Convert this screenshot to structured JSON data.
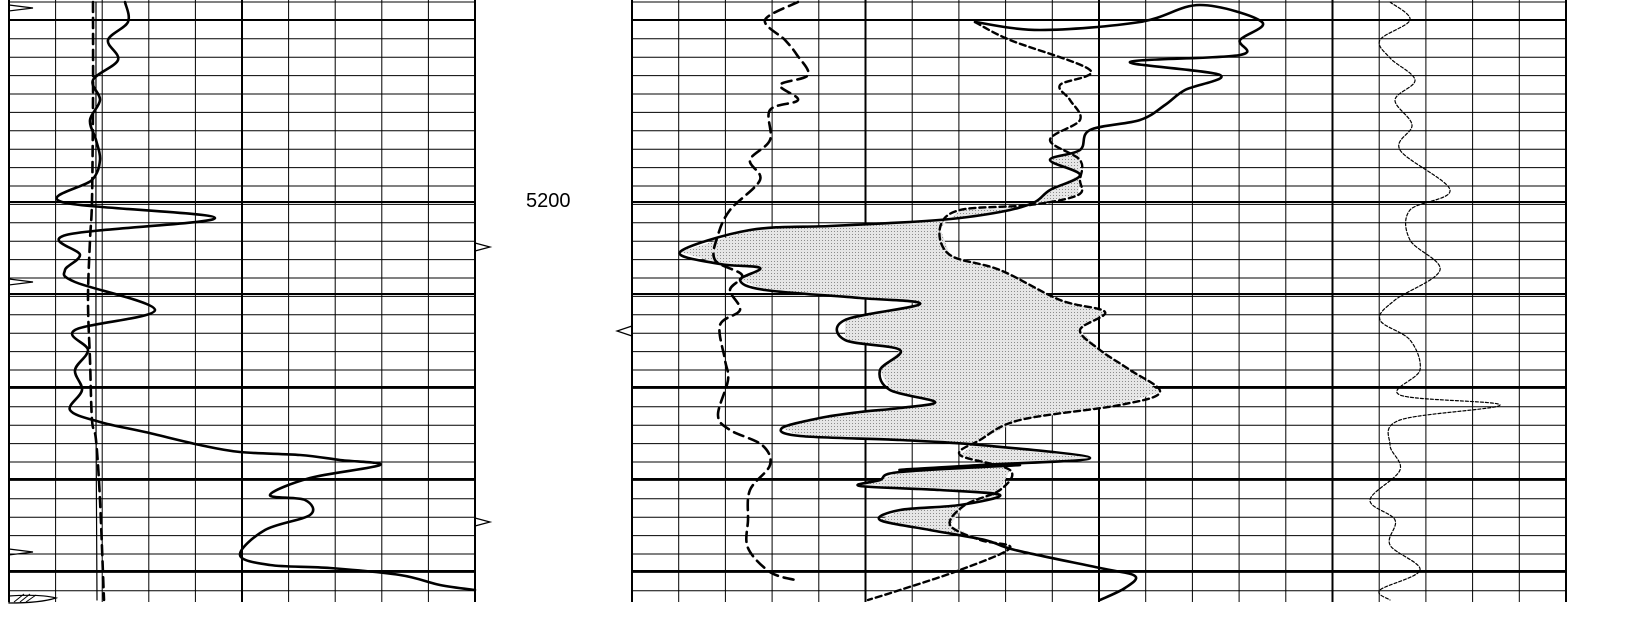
{
  "depth_label": "5200",
  "colors": {
    "grid": "#000000",
    "curve": "#000000",
    "shade": "#d4d4d4",
    "background": "#ffffff"
  },
  "chart_data": [
    {
      "type": "line",
      "track": "left-track",
      "series": [
        {
          "style": "solid",
          "values": [
            [
              125,
              2
            ],
            [
              128,
              22
            ],
            [
              108,
              40
            ],
            [
              118,
              60
            ],
            [
              93,
              80
            ],
            [
              100,
              100
            ],
            [
              90,
              120
            ],
            [
              96,
              140
            ],
            [
              100,
              160
            ],
            [
              92,
              180
            ],
            [
              62,
              202
            ],
            [
              215,
              218
            ],
            [
              66,
              235
            ],
            [
              80,
              255
            ],
            [
              65,
              270
            ],
            [
              75,
              282
            ],
            [
              155,
              310
            ],
            [
              75,
              330
            ],
            [
              88,
              350
            ],
            [
              75,
              370
            ],
            [
              82,
              390
            ],
            [
              70,
              410
            ],
            [
              100,
              422
            ],
            [
              145,
              432
            ],
            [
              200,
              445
            ],
            [
              240,
              452
            ],
            [
              300,
              455
            ],
            [
              340,
              460
            ],
            [
              380,
              465
            ],
            [
              310,
              478
            ],
            [
              270,
              495
            ],
            [
              305,
              500
            ],
            [
              310,
              515
            ],
            [
              265,
              530
            ],
            [
              240,
              555
            ],
            [
              270,
              565
            ],
            [
              330,
              568
            ],
            [
              400,
              575
            ],
            [
              440,
              585
            ],
            [
              475,
              590
            ]
          ]
        },
        {
          "style": "dashed",
          "values": [
            [
              93,
              2
            ],
            [
              93,
              100
            ],
            [
              92,
              200
            ],
            [
              90,
              240
            ],
            [
              88,
              300
            ],
            [
              90,
              360
            ],
            [
              92,
              420
            ],
            [
              96,
              440
            ],
            [
              100,
              500
            ],
            [
              104,
              600
            ]
          ]
        },
        {
          "style": "thin",
          "values": [
            [
              96,
              2
            ],
            [
              96,
              420
            ],
            [
              97,
              600
            ]
          ]
        }
      ]
    },
    {
      "type": "area",
      "track": "center-track",
      "series": [
        {
          "style": "dashed",
          "values": [
            [
              798,
              2
            ],
            [
              765,
              20
            ],
            [
              785,
              40
            ],
            [
              797,
              55
            ],
            [
              808,
              75
            ],
            [
              780,
              85
            ],
            [
              798,
              100
            ],
            [
              770,
              110
            ],
            [
              770,
              140
            ],
            [
              750,
              160
            ],
            [
              760,
              180
            ],
            [
              730,
              210
            ],
            [
              718,
              235
            ],
            [
              715,
              260
            ],
            [
              742,
              275
            ],
            [
              730,
              290
            ],
            [
              740,
              310
            ],
            [
              720,
              325
            ],
            [
              725,
              360
            ],
            [
              728,
              380
            ],
            [
              718,
              415
            ],
            [
              730,
              430
            ],
            [
              762,
              445
            ],
            [
              770,
              465
            ],
            [
              750,
              490
            ],
            [
              748,
              520
            ],
            [
              748,
              548
            ],
            [
              770,
              572
            ],
            [
              795,
              580
            ]
          ]
        },
        {
          "style": "solid",
          "values": [
            [
              975,
              22
            ],
            [
              1040,
              30
            ],
            [
              1140,
              22
            ],
            [
              1200,
              5
            ],
            [
              1262,
              22
            ],
            [
              1240,
              40
            ],
            [
              1240,
              55
            ],
            [
              1130,
              62
            ],
            [
              1220,
              75
            ],
            [
              1185,
              90
            ],
            [
              1165,
              105
            ],
            [
              1140,
              120
            ],
            [
              1090,
              130
            ],
            [
              1080,
              150
            ],
            [
              1050,
              160
            ],
            [
              1080,
              175
            ],
            [
              1050,
              190
            ],
            [
              1035,
              202
            ],
            [
              1010,
              210
            ],
            [
              960,
              218
            ],
            [
              910,
              222
            ],
            [
              830,
              226
            ],
            [
              750,
              230
            ],
            [
              680,
              252
            ],
            [
              720,
              264
            ],
            [
              760,
              268
            ],
            [
              740,
              280
            ],
            [
              765,
              290
            ],
            [
              860,
              298
            ],
            [
              920,
              304
            ],
            [
              845,
              320
            ],
            [
              845,
              340
            ],
            [
              900,
              350
            ],
            [
              880,
              370
            ],
            [
              890,
              390
            ],
            [
              935,
              402
            ],
            [
              900,
              408
            ],
            [
              860,
              412
            ],
            [
              820,
              418
            ],
            [
              782,
              428
            ],
            [
              800,
              436
            ],
            [
              900,
              440
            ],
            [
              980,
              445
            ],
            [
              1090,
              458
            ],
            [
              980,
              465
            ],
            [
              900,
              470
            ],
            [
              1020,
              465
            ],
            [
              900,
              472
            ],
            [
              880,
              480
            ],
            [
              860,
              486
            ],
            [
              940,
              490
            ],
            [
              1000,
              495
            ],
            [
              960,
              505
            ],
            [
              900,
              510
            ],
            [
              880,
              520
            ],
            [
              930,
              530
            ],
            [
              985,
              540
            ],
            [
              1015,
              550
            ],
            [
              1100,
              568
            ],
            [
              1135,
              576
            ],
            [
              1125,
              588
            ],
            [
              1100,
              600
            ]
          ]
        },
        {
          "style": "dashed-reference",
          "values": [
            [
              975,
              22
            ],
            [
              1010,
              40
            ],
            [
              1090,
              70
            ],
            [
              1060,
              85
            ],
            [
              1070,
              100
            ],
            [
              1080,
              120
            ],
            [
              1050,
              140
            ],
            [
              1080,
              160
            ],
            [
              1080,
              180
            ],
            [
              1078,
              195
            ],
            [
              1030,
              205
            ],
            [
              960,
              210
            ],
            [
              940,
              228
            ],
            [
              950,
              255
            ],
            [
              1000,
              270
            ],
            [
              1060,
              300
            ],
            [
              1105,
              312
            ],
            [
              1080,
              330
            ],
            [
              1100,
              350
            ],
            [
              1130,
              370
            ],
            [
              1160,
              392
            ],
            [
              1120,
              405
            ],
            [
              1020,
              420
            ],
            [
              980,
              440
            ],
            [
              960,
              455
            ],
            [
              1010,
              470
            ],
            [
              1000,
              490
            ],
            [
              965,
              505
            ],
            [
              950,
              525
            ],
            [
              980,
              540
            ],
            [
              1010,
              548
            ],
            [
              960,
              570
            ],
            [
              900,
              590
            ],
            [
              868,
              600
            ]
          ]
        }
      ]
    },
    {
      "type": "line",
      "track": "right-track",
      "series": [
        {
          "style": "dotted",
          "values": [
            [
              1390,
              2
            ],
            [
              1410,
              20
            ],
            [
              1380,
              40
            ],
            [
              1390,
              58
            ],
            [
              1415,
              80
            ],
            [
              1395,
              100
            ],
            [
              1412,
              125
            ],
            [
              1400,
              150
            ],
            [
              1450,
              190
            ],
            [
              1410,
              210
            ],
            [
              1410,
              240
            ],
            [
              1440,
              270
            ],
            [
              1395,
              300
            ],
            [
              1380,
              320
            ],
            [
              1410,
              340
            ],
            [
              1420,
              370
            ],
            [
              1400,
              395
            ],
            [
              1500,
              405
            ],
            [
              1400,
              420
            ],
            [
              1390,
              445
            ],
            [
              1400,
              470
            ],
            [
              1370,
              500
            ],
            [
              1395,
              520
            ],
            [
              1390,
              545
            ],
            [
              1420,
              570
            ],
            [
              1380,
              590
            ],
            [
              1390,
              600
            ]
          ]
        }
      ]
    }
  ]
}
